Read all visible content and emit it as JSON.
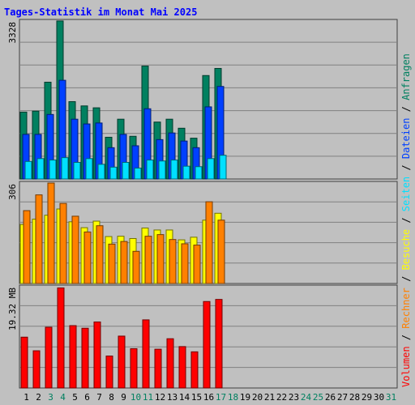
{
  "chart_data": {
    "type": "bar",
    "title": "Tages-Statistik im Monat Mai 2025",
    "colors": {
      "background": "#c0c0c0",
      "title": "#0000ff",
      "anfragen": "#008060",
      "dateien": "#0040ff",
      "seiten": "#00e0ff",
      "besuche": "#ffff00",
      "rechner": "#ff8000",
      "volumen": "#ff0000",
      "weekend": "#008060"
    },
    "categories": [
      "1",
      "2",
      "3",
      "4",
      "5",
      "6",
      "7",
      "8",
      "9",
      "10",
      "11",
      "12",
      "13",
      "14",
      "15",
      "16",
      "17",
      "18",
      "19",
      "20",
      "21",
      "22",
      "23",
      "24",
      "25",
      "26",
      "27",
      "28",
      "29",
      "30",
      "31"
    ],
    "weekend_days": [
      "3",
      "4",
      "10",
      "11",
      "17",
      "18",
      "24",
      "25",
      "31"
    ],
    "legend": {
      "separator": "/",
      "items": [
        {
          "key": "volumen",
          "label": "Volumen"
        },
        {
          "key": "rechner",
          "label": "Rechner"
        },
        {
          "key": "besuche",
          "label": "Besuche"
        },
        {
          "key": "seiten",
          "label": "Seiten"
        },
        {
          "key": "dateien",
          "label": "Dateien"
        },
        {
          "key": "anfragen",
          "label": "Anfragen"
        }
      ]
    },
    "panels": [
      {
        "id": "hits",
        "max_label": "3328",
        "ylim": [
          0,
          3328
        ],
        "series": [
          {
            "key": "anfragen",
            "name": "Anfragen",
            "values": [
              1410,
              1430,
              2040,
              3330,
              1630,
              1540,
              1500,
              880,
              1260,
              900,
              2380,
              1200,
              1260,
              1070,
              860,
              2180,
              2330,
              0,
              0,
              0,
              0,
              0,
              0,
              0,
              0,
              0,
              0,
              0,
              0,
              0,
              0
            ]
          },
          {
            "key": "dateien",
            "name": "Dateien",
            "values": [
              940,
              940,
              1360,
              2080,
              1260,
              1160,
              1180,
              660,
              940,
              700,
              1480,
              830,
              970,
              800,
              660,
              1520,
              1950,
              0,
              0,
              0,
              0,
              0,
              0,
              0,
              0,
              0,
              0,
              0,
              0,
              0,
              0
            ]
          },
          {
            "key": "seiten",
            "name": "Seiten",
            "values": [
              370,
              430,
              400,
              450,
              350,
              430,
              310,
              250,
              350,
              230,
              400,
              380,
              400,
              270,
              260,
              430,
              500,
              0,
              0,
              0,
              0,
              0,
              0,
              0,
              0,
              0,
              0,
              0,
              0,
              0,
              0
            ]
          }
        ]
      },
      {
        "id": "visits",
        "max_label": "306",
        "ylim": [
          0,
          306
        ],
        "series": [
          {
            "key": "besuche",
            "name": "Besuche",
            "values": [
              180,
              196,
              208,
              227,
              188,
              170,
              190,
              143,
              144,
              137,
              169,
              163,
              163,
              133,
              141,
              193,
              214,
              0,
              0,
              0,
              0,
              0,
              0,
              0,
              0,
              0,
              0,
              0,
              0,
              0,
              0
            ]
          },
          {
            "key": "rechner",
            "name": "Rechner",
            "values": [
              222,
              270,
              306,
              244,
              205,
              157,
              176,
              120,
              128,
              98,
              144,
              149,
              134,
              121,
              117,
              249,
              193,
              0,
              0,
              0,
              0,
              0,
              0,
              0,
              0,
              0,
              0,
              0,
              0,
              0,
              0
            ]
          }
        ]
      },
      {
        "id": "volume",
        "max_label": "19.32 MB",
        "ylim": [
          0,
          19.32
        ],
        "series": [
          {
            "key": "volumen",
            "name": "Volumen",
            "values": [
              9.7,
              7.1,
              11.6,
              19.1,
              11.9,
              11.4,
              12.6,
              6.1,
              9.9,
              7.5,
              13.0,
              7.4,
              9.4,
              7.9,
              6.9,
              16.5,
              16.9,
              0,
              0,
              0,
              0,
              0,
              0,
              0,
              0,
              0,
              0,
              0,
              0,
              0,
              0
            ]
          }
        ]
      }
    ]
  }
}
